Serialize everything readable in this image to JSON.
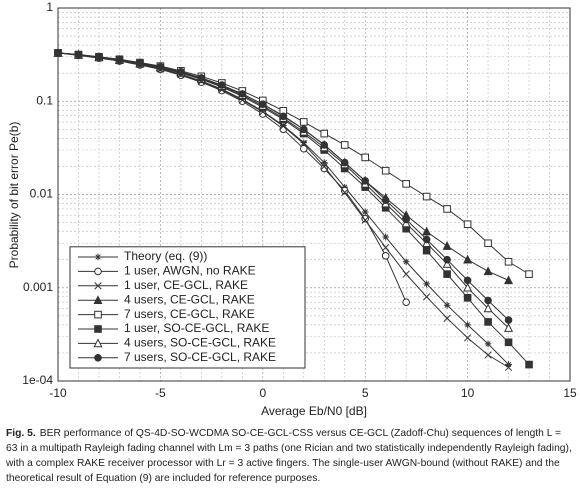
{
  "chart_data": {
    "type": "line",
    "ylabel": "Probability of bit error Pe(b)",
    "xlabel": "Average Eb/N0 [dB]",
    "xlim": [
      -10,
      15
    ],
    "xticks": [
      -10,
      -5,
      0,
      5,
      10,
      15
    ],
    "ylim": [
      0.0001,
      1
    ],
    "yticks": [
      1,
      0.1,
      0.01,
      0.001,
      {
        "value": 0.0001,
        "label": "1e-04"
      }
    ],
    "log_y": true,
    "grid": true,
    "legend": "lower left",
    "series": [
      {
        "name": "Theory (eq. (9))",
        "marker": "asterisk",
        "color": "#333333",
        "x": [
          -10,
          -9,
          -8,
          -7,
          -6,
          -5,
          -4,
          -3,
          -2,
          -1,
          0,
          1,
          2,
          3,
          4,
          5,
          6,
          7,
          8,
          9,
          10,
          11,
          12
        ],
        "values": [
          0.33,
          0.315,
          0.295,
          0.275,
          0.25,
          0.225,
          0.195,
          0.165,
          0.135,
          0.105,
          0.078,
          0.055,
          0.036,
          0.022,
          0.012,
          0.0065,
          0.0035,
          0.0019,
          0.0011,
          0.00065,
          0.0004,
          0.00025,
          0.00015
        ]
      },
      {
        "name": "1 user, AWGN, no RAKE",
        "marker": "circle-open",
        "color": "#333333",
        "x": [
          -10,
          -9,
          -8,
          -7,
          -6,
          -5,
          -4,
          -3,
          -2,
          -1,
          0,
          1,
          2,
          3,
          4,
          5,
          6,
          7
        ],
        "values": [
          0.33,
          0.31,
          0.29,
          0.27,
          0.245,
          0.22,
          0.19,
          0.16,
          0.13,
          0.1,
          0.073,
          0.05,
          0.031,
          0.019,
          0.011,
          0.0055,
          0.0022,
          0.0007
        ]
      },
      {
        "name": "1 user, CE-GCL, RAKE",
        "marker": "x",
        "color": "#333333",
        "x": [
          -10,
          -9,
          -8,
          -7,
          -6,
          -5,
          -4,
          -3,
          -2,
          -1,
          0,
          1,
          2,
          3,
          4,
          5,
          6,
          7,
          8,
          9,
          10,
          11,
          12
        ],
        "values": [
          0.33,
          0.312,
          0.292,
          0.272,
          0.248,
          0.222,
          0.193,
          0.163,
          0.133,
          0.103,
          0.077,
          0.054,
          0.035,
          0.02,
          0.0105,
          0.0053,
          0.0027,
          0.0014,
          0.0008,
          0.00047,
          0.00029,
          0.00019,
          0.00014
        ]
      },
      {
        "name": "4 users, CE-GCL, RAKE",
        "marker": "triangle-filled",
        "color": "#333333",
        "x": [
          -10,
          -9,
          -8,
          -7,
          -6,
          -5,
          -4,
          -3,
          -2,
          -1,
          0,
          1,
          2,
          3,
          4,
          5,
          6,
          7,
          8,
          9,
          10,
          11,
          12
        ],
        "values": [
          0.33,
          0.315,
          0.297,
          0.278,
          0.255,
          0.232,
          0.205,
          0.177,
          0.148,
          0.12,
          0.093,
          0.07,
          0.05,
          0.034,
          0.022,
          0.014,
          0.0092,
          0.006,
          0.004,
          0.0028,
          0.002,
          0.0015,
          0.0012
        ]
      },
      {
        "name": "7 users, CE-GCL, RAKE",
        "marker": "square-open",
        "color": "#333333",
        "x": [
          -10,
          -9,
          -8,
          -7,
          -6,
          -5,
          -4,
          -3,
          -2,
          -1,
          0,
          1,
          2,
          3,
          4,
          5,
          6,
          7,
          8,
          9,
          10,
          11,
          12,
          13
        ],
        "values": [
          0.33,
          0.317,
          0.3,
          0.282,
          0.26,
          0.238,
          0.212,
          0.185,
          0.157,
          0.129,
          0.102,
          0.079,
          0.06,
          0.045,
          0.034,
          0.025,
          0.018,
          0.013,
          0.0095,
          0.007,
          0.0048,
          0.003,
          0.0019,
          0.0014
        ]
      },
      {
        "name": "1 user, SO-CE-GCL, RAKE",
        "marker": "square-filled",
        "color": "#333333",
        "x": [
          -10,
          -9,
          -8,
          -7,
          -6,
          -5,
          -4,
          -3,
          -2,
          -1,
          0,
          1,
          2,
          3,
          4,
          5,
          6,
          7,
          8,
          9,
          10,
          11,
          12,
          13
        ],
        "values": [
          0.33,
          0.314,
          0.295,
          0.276,
          0.253,
          0.229,
          0.201,
          0.172,
          0.142,
          0.113,
          0.086,
          0.064,
          0.045,
          0.03,
          0.019,
          0.012,
          0.0072,
          0.0043,
          0.0025,
          0.0014,
          0.00078,
          0.00043,
          0.00026,
          0.00015
        ]
      },
      {
        "name": "4 users, SO-CE-GCL, RAKE",
        "marker": "triangle-open",
        "color": "#333333",
        "x": [
          -10,
          -9,
          -8,
          -7,
          -6,
          -5,
          -4,
          -3,
          -2,
          -1,
          0,
          1,
          2,
          3,
          4,
          5,
          6,
          7,
          8,
          9,
          10,
          11,
          12
        ],
        "values": [
          0.33,
          0.315,
          0.296,
          0.277,
          0.254,
          0.23,
          0.203,
          0.174,
          0.145,
          0.116,
          0.089,
          0.066,
          0.047,
          0.032,
          0.021,
          0.013,
          0.008,
          0.0049,
          0.003,
          0.0018,
          0.001,
          0.0006,
          0.00037
        ]
      },
      {
        "name": "7 users, SO-CE-GCL, RAKE",
        "marker": "circle-filled",
        "color": "#333333",
        "x": [
          -10,
          -9,
          -8,
          -7,
          -6,
          -5,
          -4,
          -3,
          -2,
          -1,
          0,
          1,
          2,
          3,
          4,
          5,
          6,
          7,
          8,
          9,
          10,
          11,
          12
        ],
        "values": [
          0.33,
          0.316,
          0.298,
          0.279,
          0.257,
          0.234,
          0.207,
          0.178,
          0.149,
          0.12,
          0.093,
          0.069,
          0.05,
          0.034,
          0.022,
          0.014,
          0.0087,
          0.0054,
          0.0033,
          0.002,
          0.0012,
          0.00073,
          0.00045
        ]
      }
    ]
  },
  "caption": {
    "label": "Fig. 5.",
    "text": "BER performance of QS-4D-SO-WCDMA SO-CE-GCL-CSS versus CE-GCL (Zadoff-Chu) sequences of length L = 63 in a multipath Rayleigh fading channel with Lm = 3 paths (one Rician and two statistically independently Rayleigh fading), with a complex RAKE receiver processor with Lr = 3 active fingers. The single-user AWGN-bound (without RAKE) and the theoretical result of Equation (9) are included for reference purposes."
  }
}
